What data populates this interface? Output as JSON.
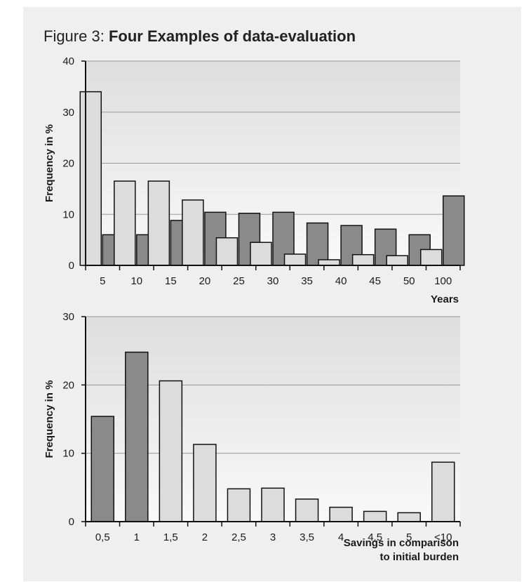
{
  "figure": {
    "label": "Figure 3:",
    "title": "Four Examples of data-evaluation"
  },
  "colors": {
    "background": "#efefef",
    "plot_gradient_top": "#dedede",
    "plot_gradient_bottom": "#f9f9f9",
    "gridline": "#999999",
    "bar_light": "#dcdcdc",
    "bar_dark": "#8a8a8a",
    "outline": "#111111"
  },
  "chart_data": [
    {
      "type": "bar",
      "categories": [
        "5",
        "10",
        "15",
        "20",
        "25",
        "30",
        "35",
        "40",
        "45",
        "50",
        "100"
      ],
      "series": [
        {
          "values": [
            34,
            16.5,
            16.5,
            12.8,
            5.4,
            4.5,
            2.2,
            1.1,
            2.1,
            1.9,
            3.1
          ],
          "color": "#dcdcdc"
        },
        {
          "values": [
            6,
            6,
            8.8,
            10.4,
            10.2,
            10.4,
            8.3,
            7.8,
            7.1,
            6,
            13.6
          ],
          "color": "#8a8a8a"
        }
      ],
      "title": "",
      "xlabel": "Years",
      "ylabel": "Frequency in %",
      "ylim": [
        0,
        40
      ],
      "yticks": [
        0,
        10,
        20,
        30,
        40
      ],
      "grid": true
    },
    {
      "type": "bar",
      "categories": [
        "0,5",
        "1",
        "1,5",
        "2",
        "2,5",
        "3",
        "3,5",
        "4",
        "4,5",
        "5",
        "<10"
      ],
      "series": [
        {
          "values": [
            15.4,
            24.8,
            20.6,
            11.3,
            4.8,
            4.9,
            3.3,
            2.1,
            1.5,
            1.3,
            8.7
          ],
          "colors": [
            "#8a8a8a",
            "#8a8a8a",
            "#dcdcdc",
            "#dcdcdc",
            "#dcdcdc",
            "#dcdcdc",
            "#dcdcdc",
            "#dcdcdc",
            "#dcdcdc",
            "#dcdcdc",
            "#dcdcdc"
          ]
        }
      ],
      "title": "",
      "xlabel_lines": [
        "Savings in comparison",
        "to initial burden"
      ],
      "ylabel": "Frequency in %",
      "ylim": [
        0,
        30
      ],
      "yticks": [
        0,
        10,
        20,
        30
      ],
      "grid": true
    }
  ]
}
